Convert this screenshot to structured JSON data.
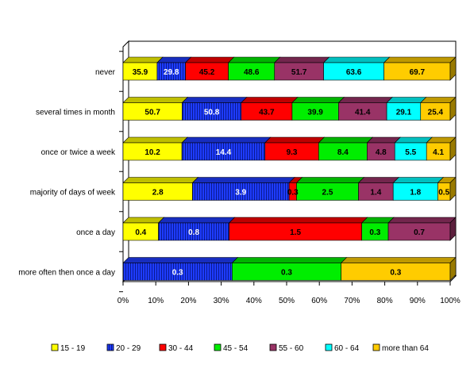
{
  "chart_data": {
    "type": "bar",
    "orientation": "horizontal",
    "stacked": "percent",
    "style": "3d",
    "categories": [
      "never",
      "several times in month",
      "once or twice a week",
      "majority of days of week",
      "once a day",
      "more often then once a day"
    ],
    "series": [
      {
        "name": "15 - 19",
        "color": "#ffff00",
        "values": [
          35.9,
          50.7,
          10.2,
          2.8,
          0.4,
          null
        ],
        "labels": [
          "35.9",
          "50.7",
          "10.2",
          "2.8",
          "0.4",
          ""
        ]
      },
      {
        "name": "20 - 29",
        "color": "#1e3cff",
        "pattern": "vertical-stripes",
        "values": [
          29.8,
          50.8,
          14.4,
          3.9,
          0.8,
          0.3
        ],
        "labels": [
          "29.8",
          "50.8",
          "14.4",
          "3.9",
          "0.8",
          "0.3"
        ]
      },
      {
        "name": "30 - 44",
        "color": "#ff0000",
        "values": [
          45.2,
          43.7,
          9.3,
          0.3,
          1.5,
          null
        ],
        "labels": [
          "45.2",
          "43.7",
          "9.3",
          "0.3",
          "1.5",
          ""
        ]
      },
      {
        "name": "45 - 54",
        "color": "#00ee00",
        "values": [
          48.6,
          39.9,
          8.4,
          2.5,
          0.3,
          0.3
        ],
        "labels": [
          "48.6",
          "39.9",
          "8.4",
          "2.5",
          "0.3",
          "0.3"
        ]
      },
      {
        "name": "55 - 60",
        "color": "#993366",
        "values": [
          51.7,
          41.4,
          4.8,
          1.4,
          0.7,
          null
        ],
        "labels": [
          "51.7",
          "41.4",
          "4.8",
          "1.4",
          "0.7",
          ""
        ]
      },
      {
        "name": "60 - 64",
        "color": "#00ffff",
        "values": [
          63.6,
          29.1,
          5.5,
          1.8,
          null,
          null
        ],
        "labels": [
          "63.6",
          "29.1",
          "5.5",
          "1.8",
          "",
          ""
        ]
      },
      {
        "name": "more than 64",
        "color": "#ffcc00",
        "values": [
          69.7,
          25.4,
          4.1,
          0.5,
          0.0,
          0.3
        ],
        "labels": [
          "69.7",
          "25.4",
          "4.1",
          "0.5",
          "0.0",
          "0.3"
        ]
      }
    ],
    "x_ticks": [
      "0%",
      "10%",
      "20%",
      "30%",
      "40%",
      "50%",
      "60%",
      "70%",
      "80%",
      "90%",
      "100%"
    ],
    "xlim": [
      0,
      100
    ],
    "xlabel": "",
    "ylabel": "",
    "title": "",
    "grid": false,
    "legend_position": "bottom"
  }
}
